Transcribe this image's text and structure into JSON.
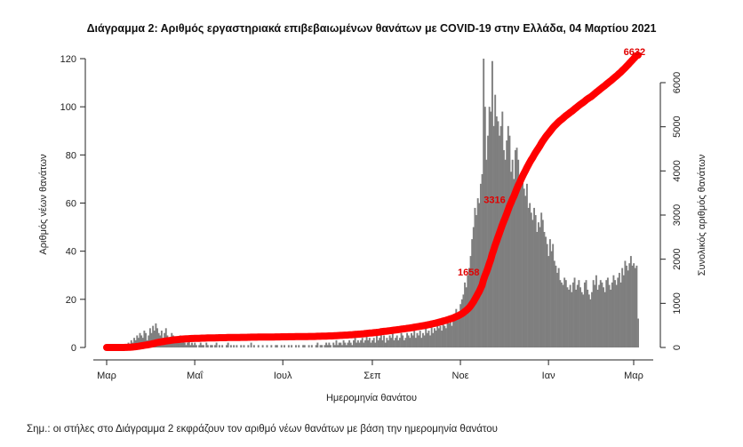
{
  "chart_data": {
    "type": "bar+line",
    "title": "Διάγραμμα 2: Αριθμός εργαστηριακά επιβεβαιωμένων θανάτων με COVID-19 στην Ελλάδα, 04 Μαρτίου 2021",
    "xlabel": "Ημερομηνία θανάτου",
    "ylabel_left": "Αριθμός νέων θανάτων",
    "ylabel_right": "Συνολικός αριθμός θανάτων",
    "ylim_left": [
      0,
      120
    ],
    "ylim_right": [
      0,
      6000
    ],
    "yticks_left": [
      0,
      20,
      40,
      60,
      80,
      100,
      120
    ],
    "yticks_right": [
      0,
      1000,
      2000,
      3000,
      4000,
      5000,
      6000
    ],
    "xticks": [
      {
        "date": "2020-03-01",
        "label": "Μαρ"
      },
      {
        "date": "2020-05-01",
        "label": "Μαΐ"
      },
      {
        "date": "2020-07-01",
        "label": "Ιουλ"
      },
      {
        "date": "2020-09-01",
        "label": "Σεπ"
      },
      {
        "date": "2020-11-01",
        "label": "Νοε"
      },
      {
        "date": "2021-01-01",
        "label": "Ιαν"
      },
      {
        "date": "2021-03-01",
        "label": "Μαρ"
      }
    ],
    "grid": false,
    "start_date": "2020-03-01",
    "bar_color": "#7f7f7f",
    "line_color": "#ff0000",
    "daily_deaths": [
      0,
      0,
      0,
      0,
      0,
      0,
      0,
      0,
      0,
      0,
      0,
      1,
      0,
      1,
      1,
      2,
      1,
      3,
      2,
      4,
      3,
      5,
      4,
      6,
      5,
      4,
      7,
      6,
      3,
      5,
      8,
      6,
      9,
      7,
      10,
      8,
      6,
      5,
      7,
      4,
      6,
      8,
      5,
      3,
      4,
      6,
      5,
      3,
      2,
      4,
      3,
      5,
      2,
      3,
      2,
      1,
      2,
      3,
      1,
      2,
      1,
      2,
      1,
      0,
      1,
      2,
      1,
      1,
      0,
      2,
      1,
      0,
      1,
      1,
      0,
      1,
      2,
      0,
      1,
      0,
      1,
      0,
      0,
      1,
      2,
      0,
      1,
      0,
      1,
      0,
      1,
      0,
      0,
      1,
      0,
      1,
      0,
      0,
      1,
      0,
      2,
      0,
      1,
      0,
      0,
      1,
      0,
      0,
      1,
      0,
      0,
      1,
      0,
      0,
      1,
      0,
      0,
      1,
      1,
      0,
      0,
      1,
      0,
      1,
      0,
      0,
      1,
      0,
      1,
      0,
      0,
      1,
      0,
      1,
      0,
      0,
      1,
      1,
      0,
      0,
      1,
      0,
      1,
      0,
      0,
      1,
      2,
      0,
      1,
      1,
      0,
      1,
      2,
      1,
      2,
      1,
      0,
      2,
      1,
      3,
      1,
      2,
      2,
      1,
      3,
      2,
      1,
      2,
      3,
      2,
      1,
      3,
      4,
      2,
      3,
      2,
      3,
      4,
      2,
      3,
      5,
      3,
      4,
      2,
      3,
      4,
      2,
      5,
      3,
      4,
      8,
      3,
      5,
      2,
      4,
      3,
      5,
      4,
      6,
      3,
      4,
      5,
      3,
      4,
      6,
      5,
      3,
      4,
      6,
      5,
      4,
      6,
      5,
      7,
      4,
      6,
      5,
      7,
      4,
      6,
      5,
      8,
      6,
      7,
      5,
      9,
      6,
      8,
      7,
      10,
      8,
      9,
      7,
      12,
      9,
      8,
      11,
      10,
      13,
      9,
      11,
      14,
      16,
      12,
      15,
      18,
      20,
      22,
      27,
      25,
      30,
      33,
      38,
      45,
      50,
      58,
      55,
      62,
      60,
      68,
      72,
      120,
      100,
      78,
      88,
      100,
      98,
      119,
      92,
      105,
      96,
      94,
      88,
      92,
      98,
      82,
      78,
      86,
      92,
      88,
      73,
      78,
      70,
      82,
      83,
      78,
      68,
      72,
      70,
      66,
      63,
      68,
      58,
      60,
      56,
      53,
      58,
      55,
      48,
      52,
      50,
      56,
      53,
      48,
      46,
      43,
      38,
      45,
      40,
      43,
      36,
      34,
      31,
      33,
      28,
      27,
      26,
      29,
      28,
      25,
      24,
      26,
      23,
      27,
      29,
      24,
      26,
      28,
      25,
      23,
      22,
      27,
      28,
      24,
      22,
      20,
      23,
      28,
      26,
      30,
      24,
      26,
      28,
      27,
      25,
      23,
      28,
      29,
      26,
      24,
      27,
      30,
      28,
      26,
      29,
      31,
      27,
      33,
      30,
      36,
      34,
      32,
      35,
      38,
      34,
      35,
      33,
      34,
      12
    ],
    "annotations": [
      {
        "label": "1658",
        "cumulative": 1658
      },
      {
        "label": "3316",
        "cumulative": 3316
      },
      {
        "label": "6632",
        "cumulative": 6632
      }
    ]
  },
  "footnote": "Σημ.: οι στήλες στο Διάγραμμα 2 εκφράζουν τον αριθμό νέων θανάτων με βάση την ημερομηνία θανάτου"
}
